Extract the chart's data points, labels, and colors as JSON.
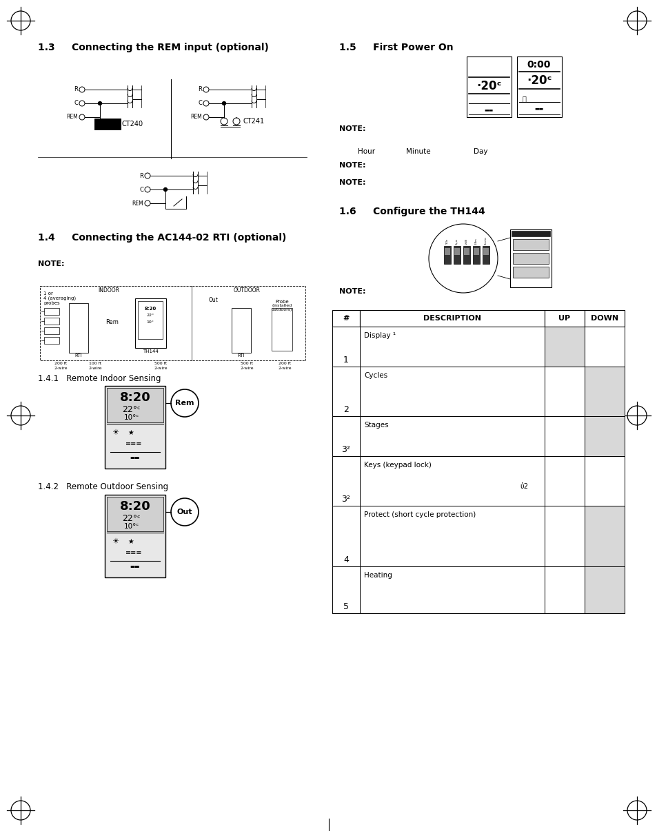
{
  "page_bg": "#ffffff",
  "section_1_3_title": "1.3     Connecting the REM input (optional)",
  "section_1_4_title": "1.4     Connecting the AC144-02 RTI (optional)",
  "section_1_4_note": "NOTE:",
  "section_1_5_title": "1.5     First Power On",
  "section_1_5_note1": "NOTE:",
  "section_1_5_note2": "NOTE:",
  "section_1_5_note3": "NOTE:",
  "section_1_6_title": "1.6     Configure the TH144",
  "section_1_6_note": "NOTE:",
  "section_1_4_1_title": "1.4.1   Remote Indoor Sensing",
  "section_1_4_2_title": "1.4.2   Remote Outdoor Sensing",
  "table_headers": [
    "#",
    "DESCRIPTION",
    "UP",
    "DOWN"
  ],
  "table_rows": [
    {
      "num": "1",
      "desc": "Display ¹",
      "up_gray": true,
      "down_gray": false
    },
    {
      "num": "2",
      "desc": "Cycles",
      "up_gray": false,
      "down_gray": true
    },
    {
      "num": "3²",
      "desc": "Stages",
      "up_gray": false,
      "down_gray": true
    },
    {
      "num": "3²",
      "desc": "Keys (keypad lock)",
      "up_gray": false,
      "down_gray": false,
      "lock_icon": true
    },
    {
      "num": "4",
      "desc": "Protect (short cycle protection)",
      "up_gray": false,
      "down_gray": true
    },
    {
      "num": "5",
      "desc": "Heating",
      "up_gray": false,
      "down_gray": true
    }
  ]
}
